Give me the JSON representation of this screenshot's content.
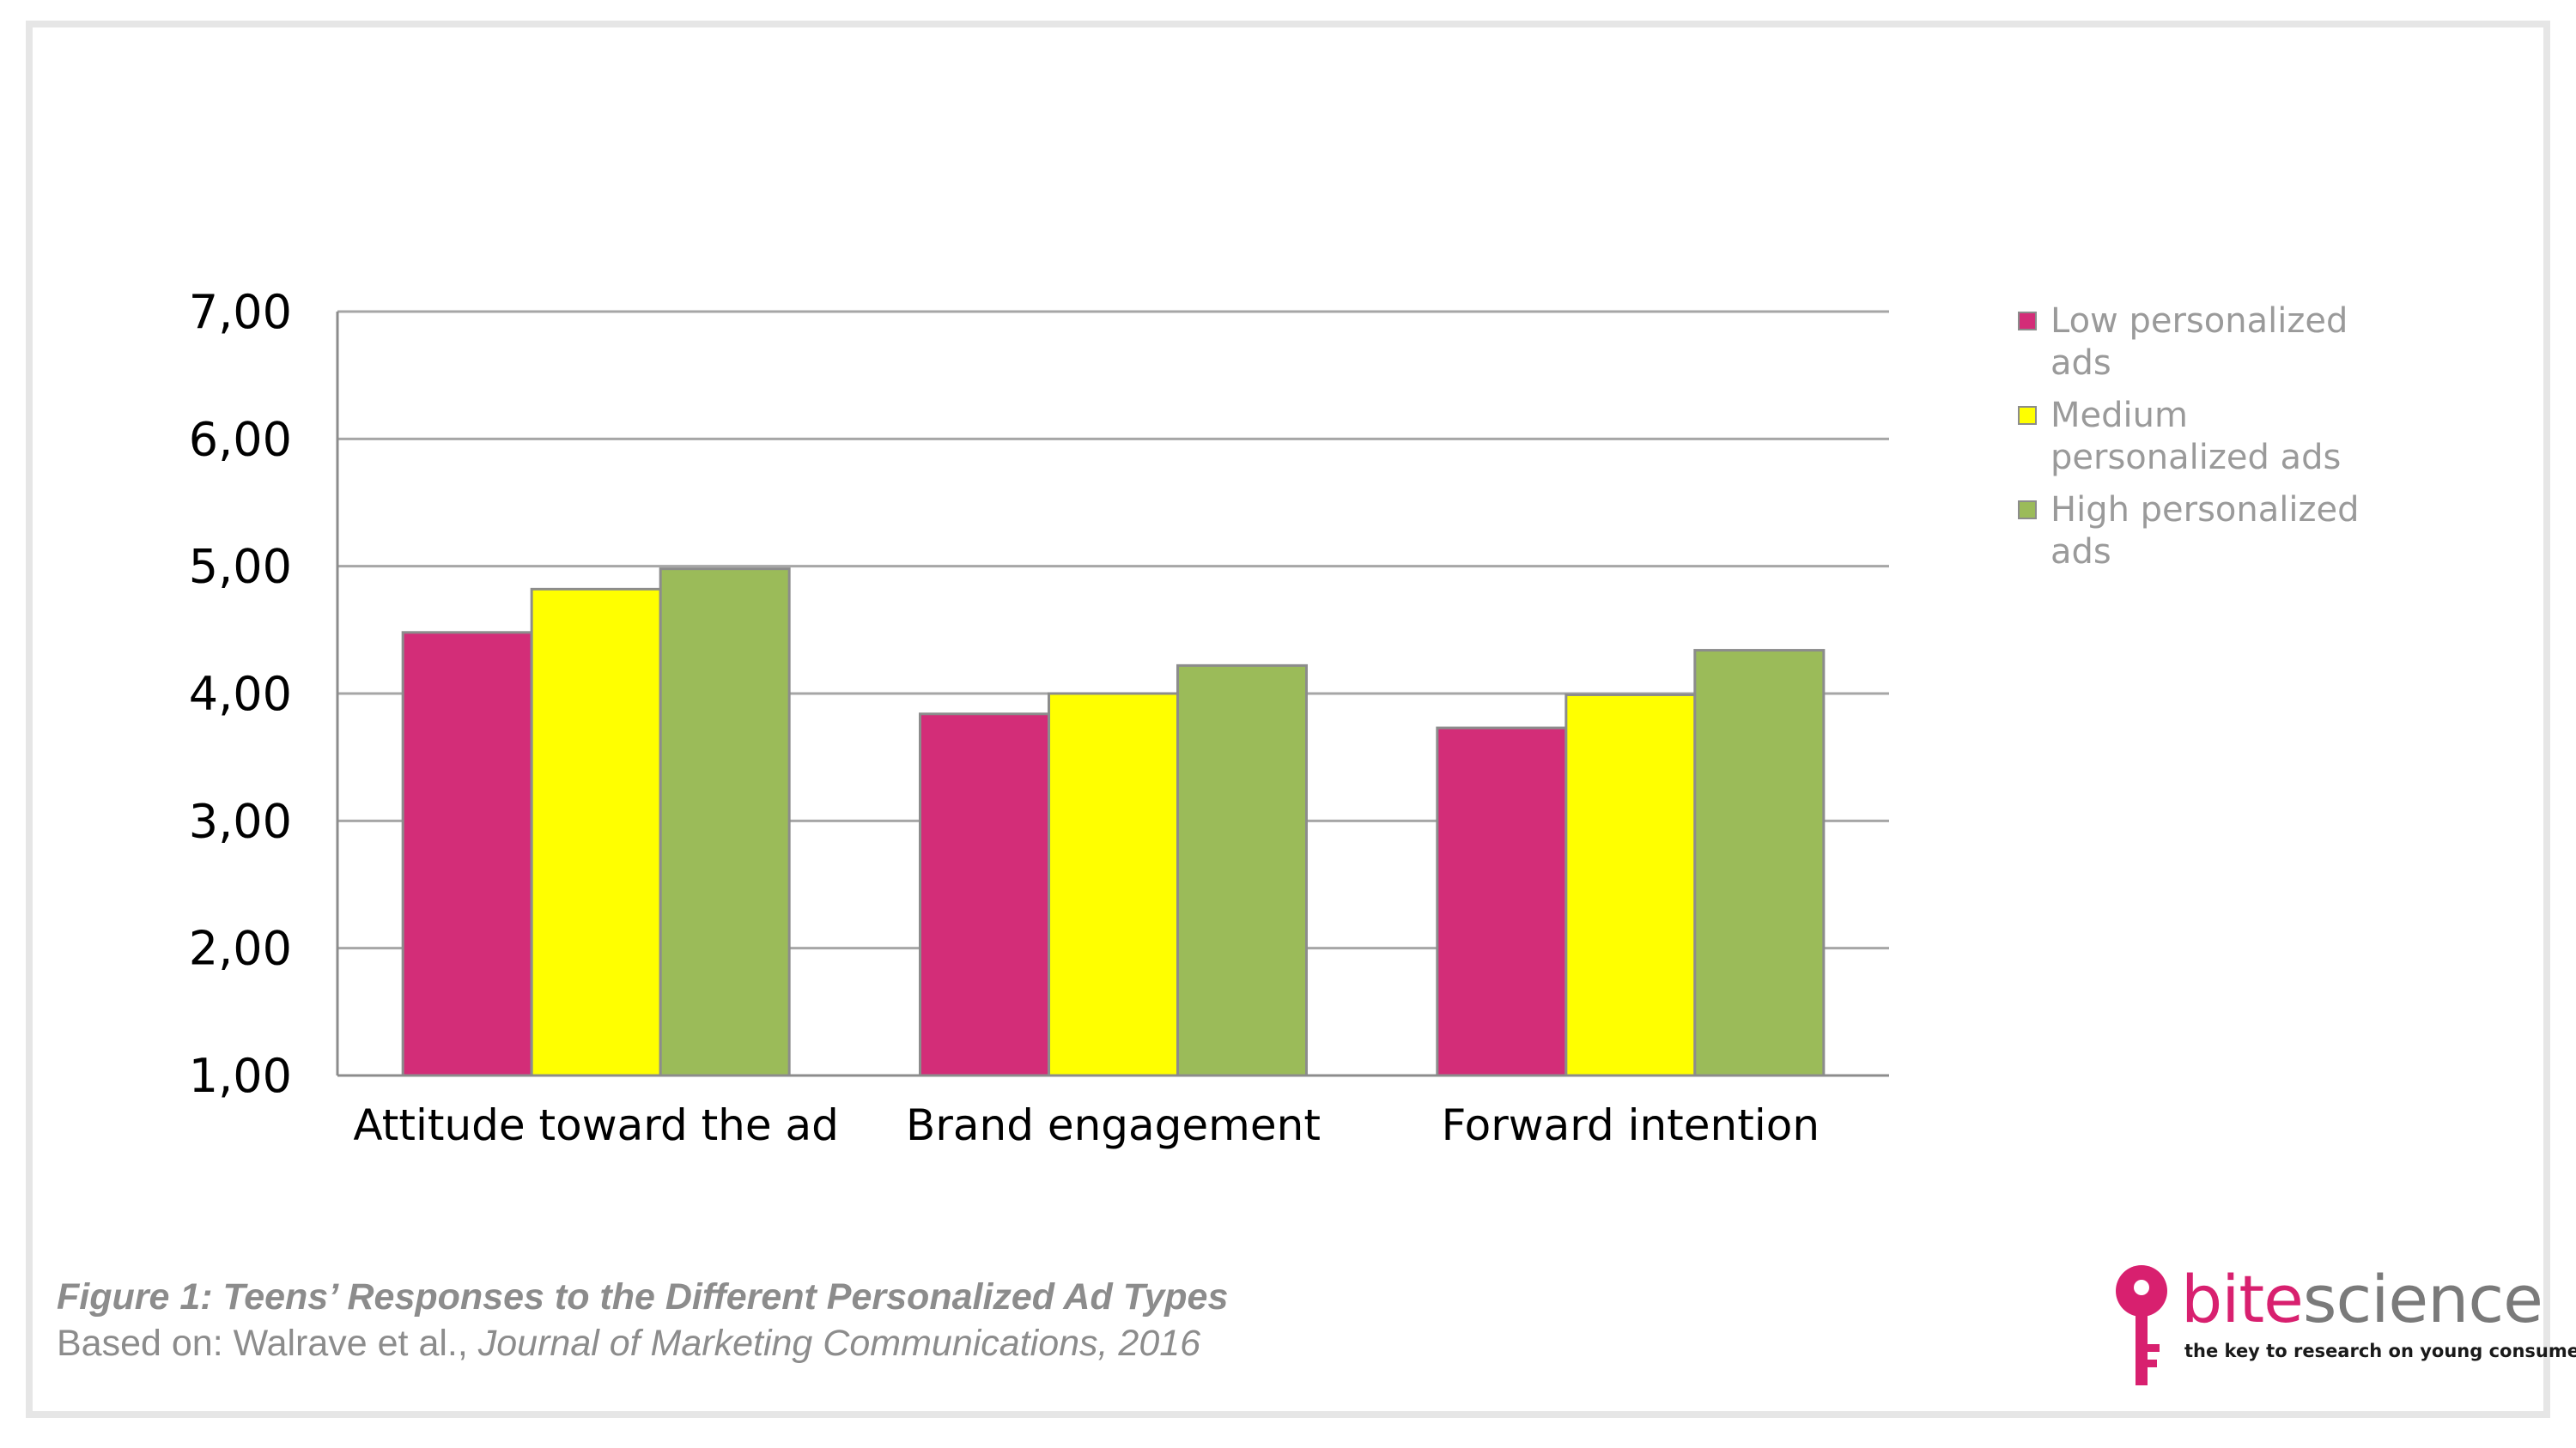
{
  "chart_data": {
    "type": "bar",
    "title": "",
    "xlabel": "",
    "ylabel": "",
    "ylim": [
      1,
      7
    ],
    "y_ticks": [
      "1,00",
      "2,00",
      "3,00",
      "4,00",
      "5,00",
      "6,00",
      "7,00"
    ],
    "grid": true,
    "legend_position": "right",
    "categories": [
      "Attitude toward the ad",
      "Brand engagement",
      "Forward intention"
    ],
    "series": [
      {
        "name": "Low personalized ads",
        "values": [
          4.48,
          3.84,
          3.73
        ],
        "color": "#d32d78"
      },
      {
        "name": "Medium personalized ads",
        "values": [
          4.82,
          4.0,
          3.99
        ],
        "color": "#ffff00"
      },
      {
        "name": "High personalized ads",
        "values": [
          4.98,
          4.22,
          4.34
        ],
        "color": "#9bbb59"
      }
    ]
  },
  "legend": {
    "items": [
      {
        "line1": "Low personalized",
        "line2": "ads",
        "color": "#d32d78"
      },
      {
        "line1": "Medium",
        "line2": "personalized ads",
        "color": "#ffff00"
      },
      {
        "line1": "High personalized",
        "line2": "ads",
        "color": "#9bbb59"
      }
    ]
  },
  "caption": {
    "title": "Figure 1: Teens’ Responses to the Different Personalized Ad Types",
    "source_prefix": "Based on: Walrave et al., ",
    "source_journal": "Journal of Marketing Communications, 2016"
  },
  "logo": {
    "bite": "bite",
    "science": "science",
    "tagline": "the key to research on young consumers",
    "color": "#d8206f",
    "icon": "key-icon"
  }
}
